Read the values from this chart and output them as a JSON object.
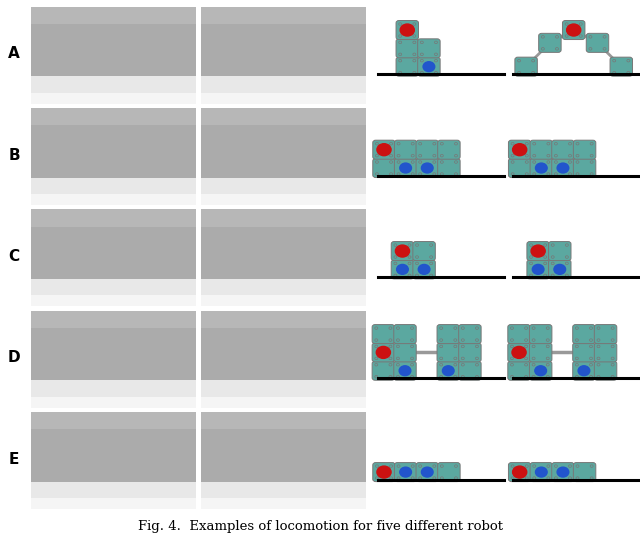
{
  "figure_title": "Fig. 4.  Examples of locomotion for five different robot",
  "rows": [
    "A",
    "B",
    "C",
    "D",
    "E"
  ],
  "background_color": "#ffffff",
  "teal_color": "#5ba8a0",
  "red_color": "#cc1111",
  "blue_color": "#2255cc",
  "gray_connector": "#999999",
  "gray_edge": "#777777",
  "label_fontsize": 11,
  "caption_fontsize": 9.5,
  "photo_top_color": "#a0a0a0",
  "photo_mid_color": "#b8b8b8",
  "photo_bot_color": "#d8d8d8"
}
